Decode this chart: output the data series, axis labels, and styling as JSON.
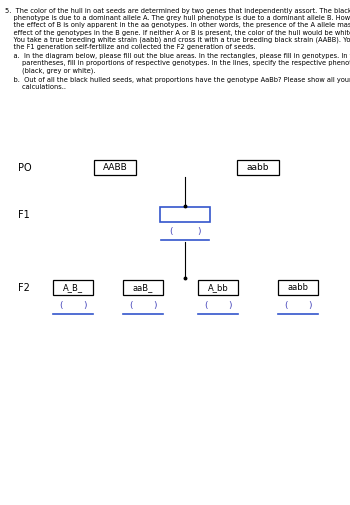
{
  "bg_color": "#ffffff",
  "text_color": "#000000",
  "blue_color": "#4444bb",
  "box_border_black": "#000000",
  "box_border_blue": "#3355cc",
  "po_label": "PO",
  "f1_label": "F1",
  "f2_label": "F2",
  "po_left_box": "AABB",
  "po_right_box": "aabb",
  "f2_boxes": [
    "A_B_",
    "aaB_",
    "A_bb",
    "aabb"
  ],
  "para_line1": "5.  The color of the hull in oat seeds are determined by two genes that independently assort. The black hull",
  "para_line2": "    phenotype is due to a dominant allele A. The grey hull phenotype is due to a dominant allele B. However,",
  "para_line3": "    the effect of B is only apparent in the aa genotypes. In other words, the presence of the A allele masks the",
  "para_line4": "    effect of the genotypes in the B gene. If neither A or B is present, the color of the hull would be white.",
  "para_line5": "    You take a true breeding white strain (aabb) and cross it with a true breeding black strain (AABB). You let",
  "para_line6": "    the F1 generation self-fertilize and collected the F2 generation of seeds.",
  "part_a_line1": "    a.  In the diagram below, please fill out the blue areas. In the rectangles, please fill in genotypes. In the",
  "part_a_line2": "        parentheses, fill in proportions of respective genotypes. In the lines, specify the respective phenotypes",
  "part_a_line3": "        (black, grey or white).",
  "part_b_line1": "    b.  Out of all the black hulled seeds, what proportions have the genotype AaBb? Please show all your",
  "part_b_line2": "        calculations.."
}
